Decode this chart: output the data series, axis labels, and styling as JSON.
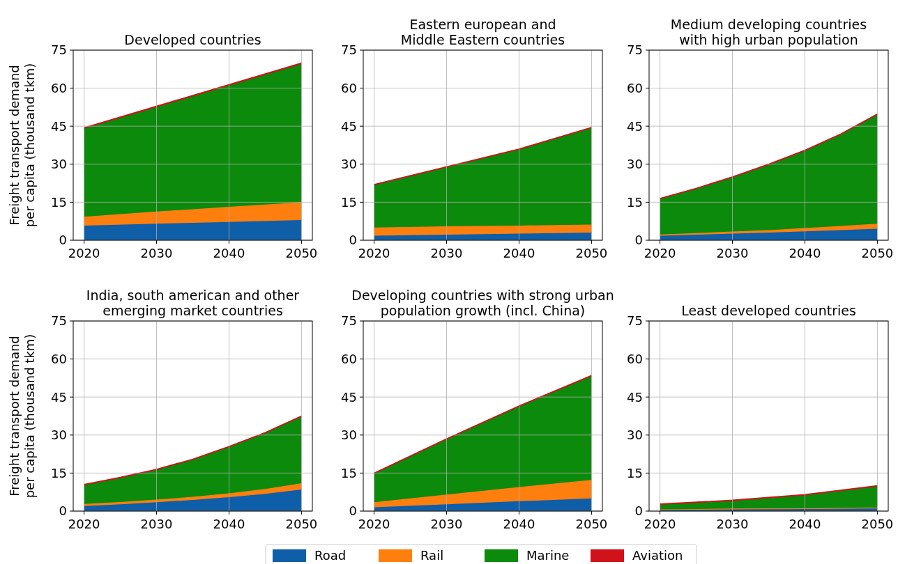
{
  "chart_data": [
    {
      "type": "area",
      "stacked": true,
      "title": "Developed countries",
      "ylabel": "Freight transport demand\nper capita (thousand tkm)",
      "x": [
        2020,
        2030,
        2040,
        2050
      ],
      "xlim": [
        2018.5,
        2051.5
      ],
      "xticks": [
        2020,
        2030,
        2040,
        2050
      ],
      "ylim": [
        0,
        75
      ],
      "yticks": [
        0,
        15,
        30,
        45,
        60,
        75
      ],
      "grid": true,
      "series": [
        {
          "color": "#0f5ea8",
          "values": [
            5.8,
            6.5,
            7.2,
            8.0
          ]
        },
        {
          "color": "#ff7f0e",
          "values": [
            3.5,
            4.8,
            6.0,
            7.0
          ]
        },
        {
          "color": "#0b8a0b",
          "values": [
            34.7,
            41.2,
            47.8,
            54.5
          ]
        },
        {
          "color": "#d0121b",
          "values": [
            0.4,
            0.4,
            0.4,
            0.4
          ]
        }
      ]
    },
    {
      "type": "area",
      "stacked": true,
      "title": "Eastern european and\nMiddle Eastern countries",
      "x": [
        2020,
        2030,
        2040,
        2050
      ],
      "xlim": [
        2018.5,
        2051.5
      ],
      "xticks": [
        2020,
        2030,
        2040,
        2050
      ],
      "ylim": [
        0,
        75
      ],
      "yticks": [
        0,
        15,
        30,
        45,
        60,
        75
      ],
      "grid": true,
      "series": [
        {
          "color": "#0f5ea8",
          "values": [
            1.8,
            2.2,
            2.6,
            3.0
          ]
        },
        {
          "color": "#ff7f0e",
          "values": [
            3.2,
            3.3,
            3.2,
            3.2
          ]
        },
        {
          "color": "#0b8a0b",
          "values": [
            16.7,
            23.2,
            29.9,
            38.0
          ]
        },
        {
          "color": "#d0121b",
          "values": [
            0.3,
            0.3,
            0.3,
            0.3
          ]
        }
      ]
    },
    {
      "type": "area",
      "stacked": true,
      "title": "Medium developing countries\nwith high urban population",
      "x": [
        2020,
        2025,
        2030,
        2035,
        2040,
        2045,
        2050
      ],
      "xlim": [
        2018.5,
        2051.5
      ],
      "xticks": [
        2020,
        2030,
        2040,
        2050
      ],
      "ylim": [
        0,
        75
      ],
      "yticks": [
        0,
        15,
        30,
        45,
        60,
        75
      ],
      "grid": true,
      "series": [
        {
          "color": "#0f5ea8",
          "values": [
            1.8,
            2.2,
            2.6,
            3.0,
            3.5,
            4.0,
            4.5
          ]
        },
        {
          "color": "#ff7f0e",
          "values": [
            0.5,
            0.6,
            0.8,
            1.0,
            1.3,
            1.6,
            2.0
          ]
        },
        {
          "color": "#0b8a0b",
          "values": [
            13.9,
            17.4,
            21.3,
            25.7,
            30.4,
            36.1,
            43.0
          ]
        },
        {
          "color": "#d0121b",
          "values": [
            0.3,
            0.3,
            0.3,
            0.3,
            0.3,
            0.3,
            0.3
          ]
        }
      ]
    },
    {
      "type": "area",
      "stacked": true,
      "title": "India, south american and other\nemerging market countries",
      "ylabel": "Freight transport demand\nper capita (thousand tkm)",
      "x": [
        2020,
        2025,
        2030,
        2035,
        2040,
        2045,
        2050
      ],
      "xlim": [
        2018.5,
        2051.5
      ],
      "xticks": [
        2020,
        2030,
        2040,
        2050
      ],
      "ylim": [
        0,
        75
      ],
      "yticks": [
        0,
        15,
        30,
        45,
        60,
        75
      ],
      "grid": true,
      "series": [
        {
          "color": "#0f5ea8",
          "values": [
            2.0,
            2.7,
            3.5,
            4.4,
            5.5,
            6.8,
            8.5
          ]
        },
        {
          "color": "#ff7f0e",
          "values": [
            0.8,
            0.9,
            1.0,
            1.2,
            1.5,
            1.9,
            2.5
          ]
        },
        {
          "color": "#0b8a0b",
          "values": [
            7.4,
            9.4,
            11.7,
            14.6,
            18.2,
            22.0,
            26.2
          ]
        },
        {
          "color": "#d0121b",
          "values": [
            0.3,
            0.3,
            0.3,
            0.3,
            0.3,
            0.3,
            0.3
          ]
        }
      ]
    },
    {
      "type": "area",
      "stacked": true,
      "title": "Developing countries with strong urban\npopulation growth (incl. China)",
      "x": [
        2020,
        2030,
        2040,
        2050
      ],
      "xlim": [
        2018.5,
        2051.5
      ],
      "xticks": [
        2020,
        2030,
        2040,
        2050
      ],
      "ylim": [
        0,
        75
      ],
      "yticks": [
        0,
        15,
        30,
        45,
        60,
        75
      ],
      "grid": true,
      "legend": "bottom",
      "series": [
        {
          "name": "Road",
          "color": "#0f5ea8",
          "values": [
            1.5,
            2.7,
            3.9,
            5.0
          ]
        },
        {
          "name": "Rail",
          "color": "#ff7f0e",
          "values": [
            2.0,
            3.8,
            5.6,
            7.3
          ]
        },
        {
          "name": "Marine",
          "color": "#0b8a0b",
          "values": [
            11.2,
            21.7,
            31.7,
            40.9
          ]
        },
        {
          "name": "Aviation",
          "color": "#d0121b",
          "values": [
            0.3,
            0.3,
            0.3,
            0.3
          ]
        }
      ]
    },
    {
      "type": "area",
      "stacked": true,
      "title": "Least developed countries",
      "x": [
        2020,
        2030,
        2040,
        2050
      ],
      "xlim": [
        2018.5,
        2051.5
      ],
      "xticks": [
        2020,
        2030,
        2040,
        2050
      ],
      "ylim": [
        0,
        75
      ],
      "yticks": [
        0,
        15,
        30,
        45,
        60,
        75
      ],
      "grid": true,
      "series": [
        {
          "color": "#0f5ea8",
          "values": [
            0.5,
            0.7,
            0.8,
            1.0
          ]
        },
        {
          "color": "#ff7f0e",
          "values": [
            0.2,
            0.3,
            0.3,
            0.4
          ]
        },
        {
          "color": "#0b8a0b",
          "values": [
            1.8,
            3.0,
            5.1,
            8.3
          ]
        },
        {
          "color": "#d0121b",
          "values": [
            0.3,
            0.3,
            0.3,
            0.3
          ]
        }
      ]
    }
  ]
}
